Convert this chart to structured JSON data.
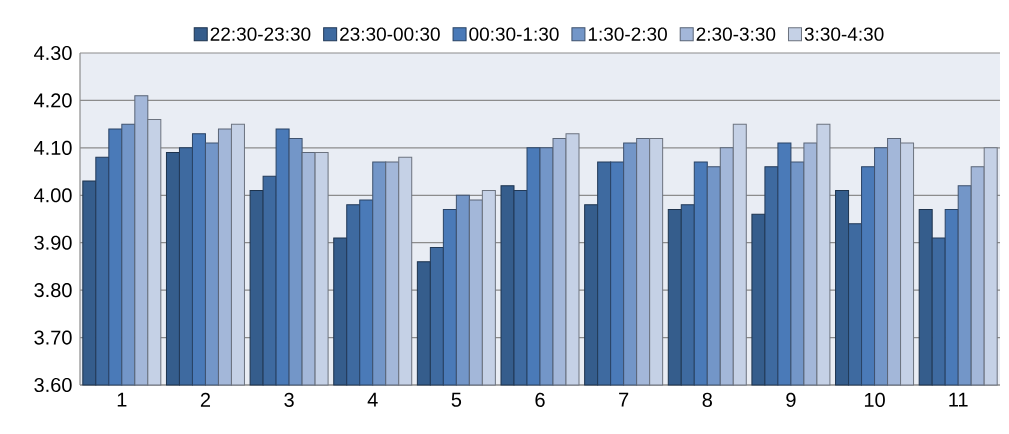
{
  "chart_data": {
    "type": "bar",
    "categories": [
      "1",
      "2",
      "3",
      "4",
      "5",
      "6",
      "7",
      "8",
      "9",
      "10",
      "11"
    ],
    "series": [
      {
        "name": "22:30-23:30",
        "color": "#355d8c",
        "values": [
          4.03,
          4.09,
          4.01,
          3.91,
          3.86,
          4.02,
          3.98,
          3.97,
          3.96,
          4.01,
          3.97
        ]
      },
      {
        "name": "23:30-00:30",
        "color": "#3e6aa0",
        "values": [
          4.08,
          4.1,
          4.04,
          3.98,
          3.89,
          4.01,
          4.07,
          3.98,
          4.06,
          3.94,
          3.91
        ]
      },
      {
        "name": "00:30-1:30",
        "color": "#4a7ab8",
        "values": [
          4.14,
          4.13,
          4.14,
          3.99,
          3.97,
          4.1,
          4.07,
          4.07,
          4.11,
          4.06,
          3.97
        ]
      },
      {
        "name": "1:30-2:30",
        "color": "#7396c8",
        "values": [
          4.15,
          4.11,
          4.12,
          4.07,
          4.0,
          4.1,
          4.11,
          4.06,
          4.07,
          4.1,
          4.02
        ]
      },
      {
        "name": "2:30-3:30",
        "color": "#a3b7d9",
        "values": [
          4.21,
          4.14,
          4.09,
          4.07,
          3.99,
          4.12,
          4.12,
          4.1,
          4.11,
          4.12,
          4.06
        ]
      },
      {
        "name": "3:30-4:30",
        "color": "#c5d1e6",
        "values": [
          4.16,
          4.15,
          4.09,
          4.08,
          4.01,
          4.13,
          4.12,
          4.15,
          4.15,
          4.11,
          4.1
        ]
      }
    ],
    "ylim": [
      3.6,
      4.3
    ],
    "yticks": [
      {
        "value": 3.6,
        "label": "3.60"
      },
      {
        "value": 3.7,
        "label": "3.70"
      },
      {
        "value": 3.8,
        "label": "3.80"
      },
      {
        "value": 3.9,
        "label": "3.90"
      },
      {
        "value": 4.0,
        "label": "4.00"
      },
      {
        "value": 4.1,
        "label": "4.10"
      },
      {
        "value": 4.2,
        "label": "4.20"
      },
      {
        "value": 4.3,
        "label": "4.30"
      }
    ],
    "grid": "y",
    "legend": "top"
  }
}
